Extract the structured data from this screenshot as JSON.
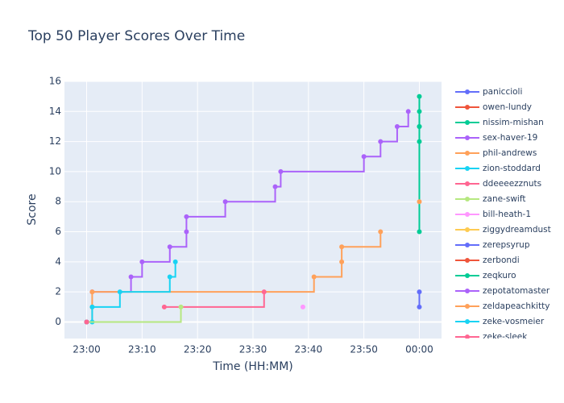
{
  "chart_data": {
    "type": "line",
    "shape": "step",
    "title": "Top 50 Player Scores Over Time",
    "x_label": "Time (HH:MM)",
    "y_label": "Score",
    "xlim": [
      "22:56",
      "00:04"
    ],
    "xticks": [
      "23:00",
      "23:10",
      "23:20",
      "23:30",
      "23:40",
      "23:50",
      "00:00"
    ],
    "ylim": [
      -1.1,
      16
    ],
    "yticks": [
      0,
      2,
      4,
      6,
      8,
      10,
      12,
      14,
      16
    ],
    "grid": true,
    "legend": "right",
    "series": [
      {
        "name": "paniccioli",
        "color": "#636efa",
        "x": [
          "00:00",
          "00:00"
        ],
        "values": [
          1,
          2
        ]
      },
      {
        "name": "owen-lundy",
        "color": "#EF553B",
        "x": [
          "23:00"
        ],
        "values": [
          0
        ]
      },
      {
        "name": "nissim-mishan",
        "color": "#00cc96",
        "x": [
          "00:00",
          "00:00",
          "00:00",
          "00:00",
          "00:00"
        ],
        "values": [
          6,
          12,
          13,
          14,
          15
        ]
      },
      {
        "name": "sex-haver-19",
        "color": "#ab63fa",
        "x": [
          "23:01",
          "23:08",
          "23:10",
          "23:15",
          "23:18",
          "23:18",
          "23:25",
          "23:34",
          "23:35",
          "23:50",
          "23:53",
          "23:56",
          "23:58"
        ],
        "values": [
          2,
          3,
          4,
          5,
          6,
          7,
          8,
          9,
          10,
          11,
          12,
          13,
          14
        ]
      },
      {
        "name": "phil-andrews",
        "color": "#FFA15A",
        "x": [
          "23:00",
          "23:01",
          "23:01",
          "23:41",
          "23:46",
          "23:46",
          "23:53"
        ],
        "values": [
          0,
          1,
          2,
          3,
          4,
          5,
          6
        ]
      },
      {
        "name": "zion-stoddard",
        "color": "#19d3f3",
        "x": [
          "23:01",
          "23:01",
          "23:06",
          "23:15",
          "23:16"
        ],
        "values": [
          0,
          1,
          2,
          3,
          4
        ]
      },
      {
        "name": "ddeeeezznuts",
        "color": "#FF6692",
        "x": [
          "23:14",
          "23:32"
        ],
        "values": [
          1,
          2
        ]
      },
      {
        "name": "zane-swift",
        "color": "#B6E880",
        "x": [
          "23:00",
          "23:17"
        ],
        "values": [
          0,
          1
        ]
      },
      {
        "name": "bill-heath-1",
        "color": "#FF97FF",
        "x": [
          "23:39"
        ],
        "values": [
          1
        ]
      },
      {
        "name": "ziggydreamdust",
        "color": "#FECB52",
        "x": [
          "23:00"
        ],
        "values": [
          0
        ]
      },
      {
        "name": "zerepsyrup",
        "color": "#636efa",
        "x": [
          "23:00"
        ],
        "values": [
          0
        ]
      },
      {
        "name": "zerbondi",
        "color": "#EF553B",
        "x": [
          "23:00"
        ],
        "values": [
          0
        ]
      },
      {
        "name": "zeqkuro",
        "color": "#00cc96",
        "x": [
          "00:00"
        ],
        "values": [
          13
        ]
      },
      {
        "name": "zepotatomaster",
        "color": "#ab63fa",
        "x": [
          "23:00"
        ],
        "values": [
          0
        ]
      },
      {
        "name": "zeldapeachkitty",
        "color": "#FFA15A",
        "x": [
          "00:00"
        ],
        "values": [
          8
        ]
      },
      {
        "name": "zeke-vosmeier",
        "color": "#19d3f3",
        "x": [
          "23:00"
        ],
        "values": [
          0
        ]
      },
      {
        "name": "zeke-sleek",
        "color": "#FF6692",
        "x": [
          "23:00"
        ],
        "values": [
          0
        ]
      }
    ]
  }
}
